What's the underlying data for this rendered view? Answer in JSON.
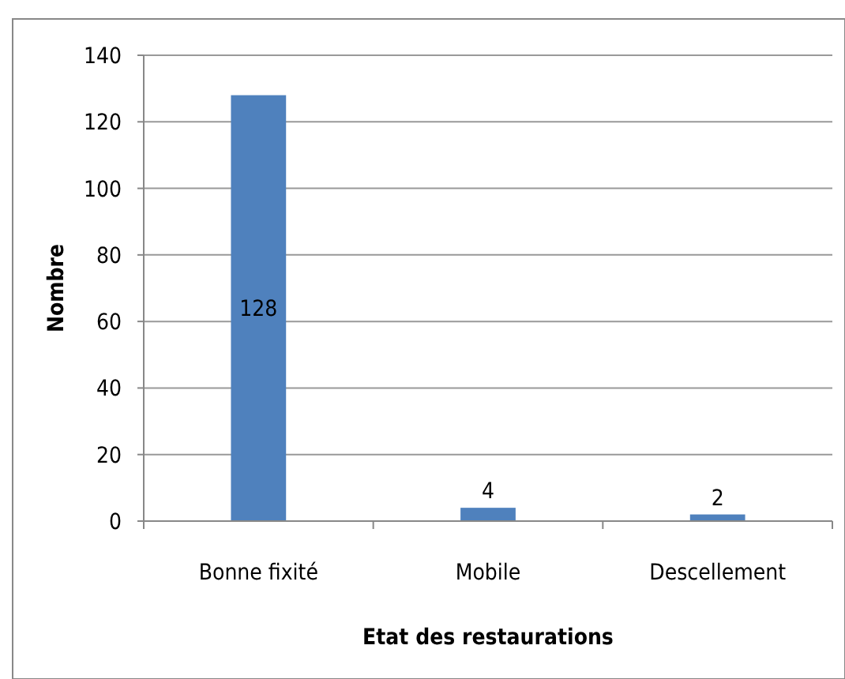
{
  "chart_data": {
    "type": "bar",
    "categories": [
      "Bonne fixité",
      "Mobile",
      "Descellement"
    ],
    "values": [
      128,
      4,
      2
    ],
    "color": "#4f81bd",
    "xlabel": "Etat des restaurations",
    "ylabel": "Nombre",
    "ylim": [
      0,
      140
    ],
    "yticks": [
      0,
      20,
      40,
      60,
      80,
      100,
      120,
      140
    ],
    "grid": "y",
    "data_labels": true
  }
}
